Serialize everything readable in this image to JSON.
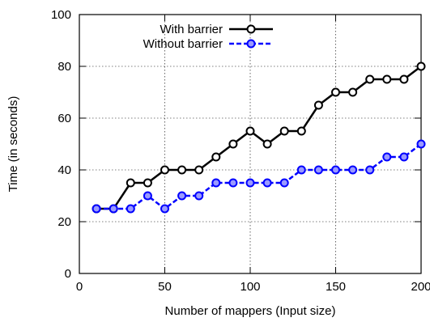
{
  "chart_data": {
    "type": "line",
    "xlabel": "Number of mappers (Input size)",
    "ylabel": "Time (in seconds)",
    "xlim": [
      0,
      200
    ],
    "ylim": [
      0,
      100
    ],
    "x_ticks": [
      0,
      50,
      100,
      150,
      200
    ],
    "y_ticks": [
      0,
      20,
      40,
      60,
      80,
      100
    ],
    "grid": true,
    "legend_position": "top-left",
    "x": [
      10,
      20,
      30,
      40,
      50,
      60,
      70,
      80,
      90,
      100,
      110,
      120,
      130,
      140,
      150,
      160,
      170,
      180,
      190,
      200
    ],
    "series": [
      {
        "name": "With barrier",
        "color": "#000000",
        "line_style": "solid",
        "values": [
          25,
          25,
          35,
          35,
          40,
          40,
          40,
          45,
          50,
          55,
          50,
          55,
          55,
          65,
          70,
          70,
          75,
          75,
          75,
          80
        ]
      },
      {
        "name": "Without barrier",
        "color": "#0000ff",
        "line_style": "dashed",
        "values": [
          25,
          25,
          25,
          30,
          25,
          30,
          30,
          35,
          35,
          35,
          35,
          35,
          40,
          40,
          40,
          40,
          40,
          45,
          45,
          50
        ]
      }
    ]
  }
}
